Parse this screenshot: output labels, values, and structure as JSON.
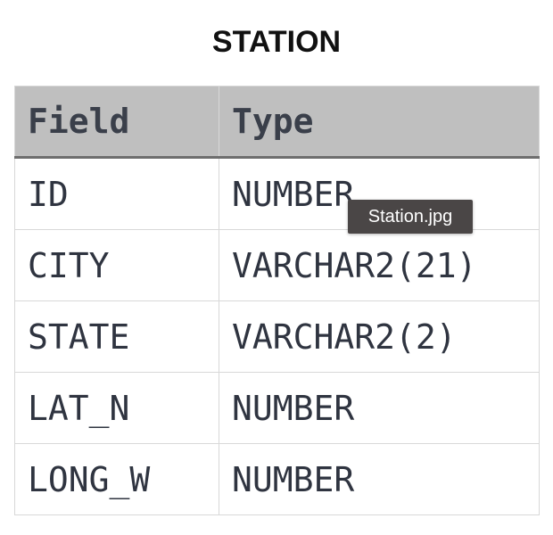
{
  "title": "STATION",
  "table": {
    "headers": [
      "Field",
      "Type"
    ],
    "rows": [
      [
        "ID",
        "NUMBER"
      ],
      [
        "CITY",
        "VARCHAR2(21)"
      ],
      [
        "STATE",
        "VARCHAR2(2)"
      ],
      [
        "LAT_N",
        "NUMBER"
      ],
      [
        "LONG_W",
        "NUMBER"
      ]
    ]
  },
  "tooltip": "Station.jpg"
}
